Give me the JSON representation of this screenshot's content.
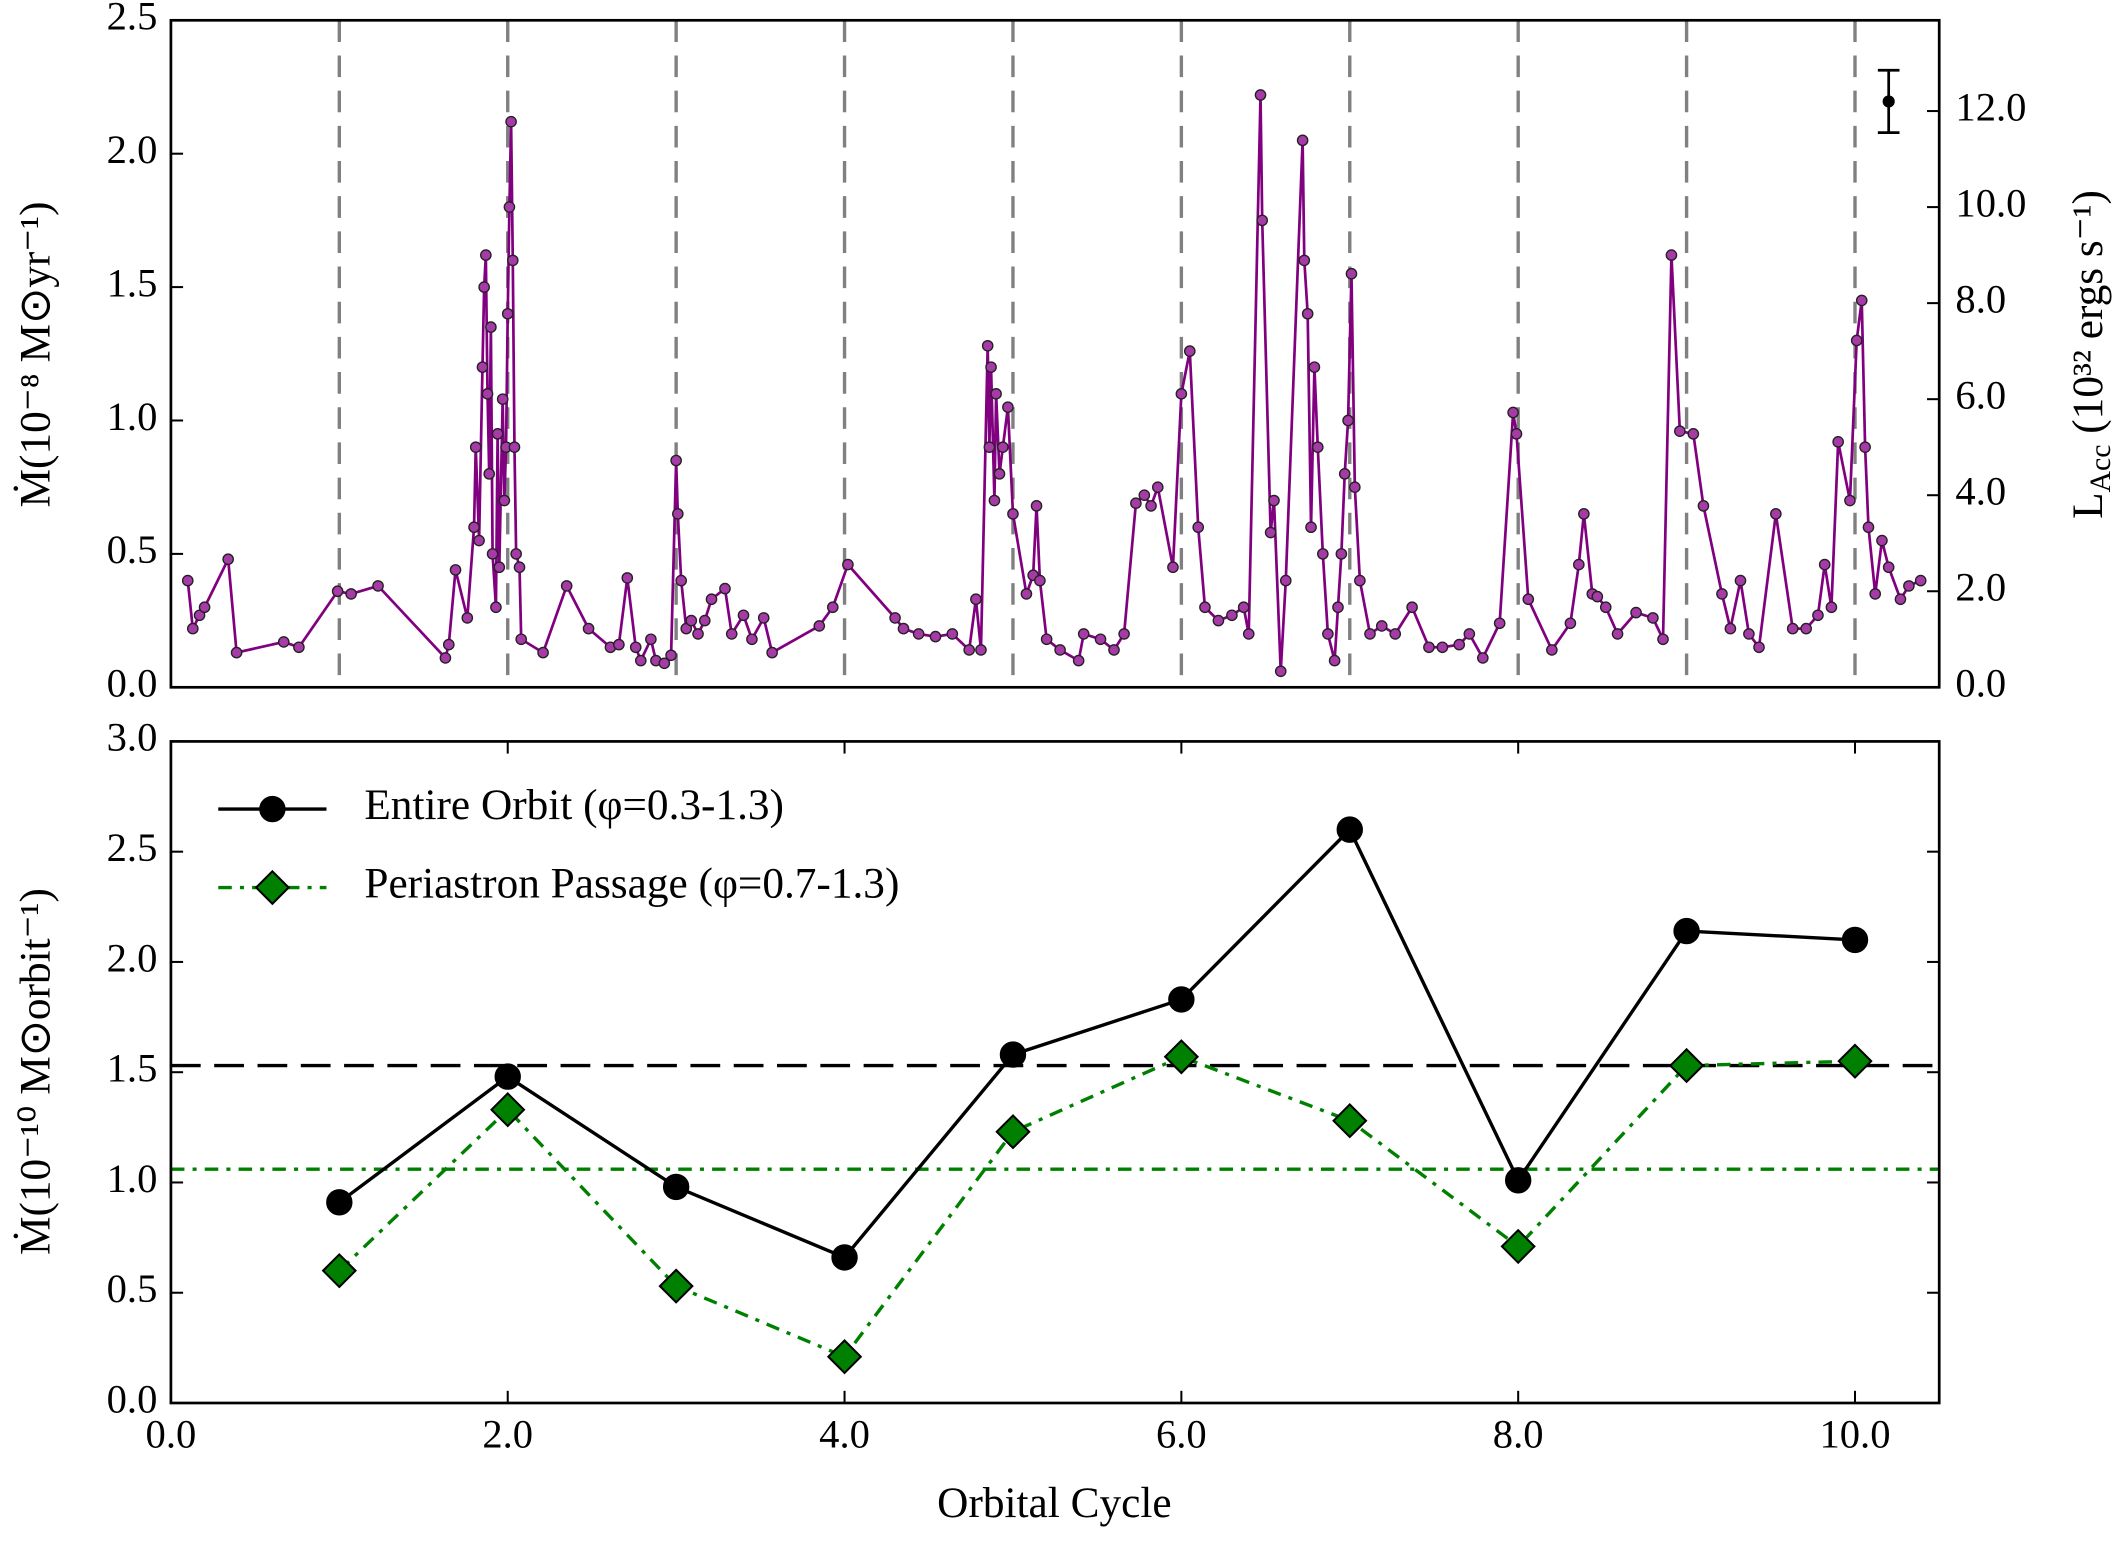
{
  "chart_data": [
    {
      "type": "line",
      "ylabel": "Ṁ(10⁻⁸ M⊙yr⁻¹)",
      "y2label": {
        "main": "L",
        "sub": "Acc",
        "rest": " (10³² ergs s⁻¹)"
      },
      "x": [
        0.1,
        0.13,
        0.17,
        0.2,
        0.34,
        0.39,
        0.67,
        0.76,
        0.99,
        1.07,
        1.23,
        1.63,
        1.65,
        1.69,
        1.76,
        1.8,
        1.81,
        1.83,
        1.85,
        1.86,
        1.87,
        1.88,
        1.89,
        1.9,
        1.91,
        1.93,
        1.94,
        1.95,
        1.97,
        1.98,
        1.99,
        2.0,
        2.01,
        2.02,
        2.03,
        2.04,
        2.05,
        2.07,
        2.08,
        2.21,
        2.35,
        2.48,
        2.61,
        2.66,
        2.71,
        2.76,
        2.79,
        2.85,
        2.88,
        2.93,
        2.97,
        3.0,
        3.01,
        3.03,
        3.06,
        3.09,
        3.13,
        3.17,
        3.21,
        3.29,
        3.33,
        3.4,
        3.45,
        3.52,
        3.57,
        3.85,
        3.93,
        4.02,
        4.3,
        4.35,
        4.44,
        4.54,
        4.64,
        4.74,
        4.78,
        4.81,
        4.85,
        4.86,
        4.87,
        4.89,
        4.9,
        4.92,
        4.94,
        4.97,
        5.0,
        5.08,
        5.12,
        5.14,
        5.16,
        5.2,
        5.28,
        5.39,
        5.42,
        5.52,
        5.6,
        5.66,
        5.73,
        5.78,
        5.82,
        5.86,
        5.95,
        6.0,
        6.05,
        6.1,
        6.14,
        6.22,
        6.3,
        6.37,
        6.4,
        6.47,
        6.48,
        6.53,
        6.55,
        6.59,
        6.62,
        6.72,
        6.73,
        6.75,
        6.77,
        6.79,
        6.81,
        6.84,
        6.87,
        6.91,
        6.93,
        6.95,
        6.97,
        6.99,
        7.01,
        7.03,
        7.06,
        7.12,
        7.19,
        7.27,
        7.37,
        7.47,
        7.55,
        7.65,
        7.71,
        7.79,
        7.89,
        7.97,
        7.99,
        8.06,
        8.2,
        8.31,
        8.36,
        8.39,
        8.44,
        8.47,
        8.52,
        8.59,
        8.7,
        8.8,
        8.86,
        8.91,
        8.96,
        9.04,
        9.1,
        9.21,
        9.26,
        9.32,
        9.37,
        9.43,
        9.53,
        9.63,
        9.71,
        9.78,
        9.82,
        9.86,
        9.9,
        9.97,
        10.01,
        10.04,
        10.06,
        10.08,
        10.12,
        10.16,
        10.2,
        10.27,
        10.32,
        10.39
      ],
      "series": [
        {
          "color": "#800080",
          "marker_color": "#a63aa6",
          "values": [
            0.4,
            0.22,
            0.27,
            0.3,
            0.48,
            0.13,
            0.17,
            0.15,
            0.36,
            0.35,
            0.38,
            0.11,
            0.16,
            0.44,
            0.26,
            0.6,
            0.9,
            0.55,
            1.2,
            1.5,
            1.62,
            1.1,
            0.8,
            1.35,
            0.5,
            0.3,
            0.95,
            0.45,
            1.08,
            0.7,
            0.9,
            1.4,
            1.8,
            2.12,
            1.6,
            0.9,
            0.5,
            0.45,
            0.18,
            0.13,
            0.38,
            0.22,
            0.15,
            0.16,
            0.41,
            0.15,
            0.1,
            0.18,
            0.1,
            0.09,
            0.12,
            0.85,
            0.65,
            0.4,
            0.22,
            0.25,
            0.2,
            0.25,
            0.33,
            0.37,
            0.2,
            0.27,
            0.18,
            0.26,
            0.13,
            0.23,
            0.3,
            0.46,
            0.26,
            0.22,
            0.2,
            0.19,
            0.2,
            0.14,
            0.33,
            0.14,
            1.28,
            0.9,
            1.2,
            0.7,
            1.1,
            0.8,
            0.9,
            1.05,
            0.65,
            0.35,
            0.42,
            0.68,
            0.4,
            0.18,
            0.14,
            0.1,
            0.2,
            0.18,
            0.14,
            0.2,
            0.69,
            0.72,
            0.68,
            0.75,
            0.45,
            1.1,
            1.26,
            0.6,
            0.3,
            0.25,
            0.27,
            0.3,
            0.2,
            2.22,
            1.75,
            0.58,
            0.7,
            0.06,
            0.4,
            2.05,
            1.6,
            1.4,
            0.6,
            1.2,
            0.9,
            0.5,
            0.2,
            0.1,
            0.3,
            0.5,
            0.8,
            1.0,
            1.55,
            0.75,
            0.4,
            0.2,
            0.23,
            0.2,
            0.3,
            0.15,
            0.15,
            0.16,
            0.2,
            0.11,
            0.24,
            1.03,
            0.95,
            0.33,
            0.14,
            0.24,
            0.46,
            0.65,
            0.35,
            0.34,
            0.3,
            0.2,
            0.28,
            0.26,
            0.18,
            1.62,
            0.96,
            0.95,
            0.68,
            0.35,
            0.22,
            0.4,
            0.2,
            0.15,
            0.65,
            0.22,
            0.22,
            0.27,
            0.46,
            0.3,
            0.92,
            0.7,
            1.3,
            1.45,
            0.9,
            0.6,
            0.35,
            0.55,
            0.45,
            0.33,
            0.38,
            0.4
          ]
        }
      ],
      "xlim": [
        0,
        10.5
      ],
      "ylim": [
        0,
        2.5
      ],
      "yticks": [
        {
          "value": 0,
          "label": "0.0"
        },
        0.5,
        {
          "value": 1,
          "label": "1.0"
        },
        1.5,
        {
          "value": 2,
          "label": "2.0"
        },
        2.5
      ],
      "y2lim": [
        0,
        13.89
      ],
      "y2ticks": [
        {
          "value": 0,
          "label": "0.0"
        },
        {
          "value": 2,
          "label": "2.0"
        },
        {
          "value": 4,
          "label": "4.0"
        },
        {
          "value": 6,
          "label": "6.0"
        },
        {
          "value": 8,
          "label": "8.0"
        },
        {
          "value": 10,
          "label": "10.0"
        },
        {
          "value": 12,
          "label": "12.0"
        }
      ],
      "vlines": [
        1,
        2,
        3,
        4,
        5,
        6,
        7,
        8,
        9,
        10
      ],
      "vline_color": "#808080",
      "reference_error": {
        "x": 10.2,
        "y": 12.2,
        "yerr": 0.65,
        "axis": "y2"
      }
    },
    {
      "type": "line",
      "xlabel": "Orbital Cycle",
      "ylabel": "Ṁ(10⁻¹⁰ M⊙orbit⁻¹)",
      "x": [
        1,
        2,
        3,
        4,
        5,
        6,
        7,
        8,
        9,
        10
      ],
      "series": [
        {
          "name": "Entire Orbit (φ=0.3-1.3)",
          "color": "#000000",
          "marker": "circle",
          "linestyle": "solid",
          "values": [
            0.91,
            1.48,
            0.98,
            0.66,
            1.58,
            1.83,
            2.6,
            1.01,
            2.14,
            2.1
          ]
        },
        {
          "name": "Periastron Passage (φ=0.7-1.3)",
          "color": "#008000",
          "marker": "diamond",
          "linestyle": "dashdot",
          "values": [
            0.6,
            1.33,
            0.53,
            0.21,
            1.23,
            1.57,
            1.28,
            0.71,
            1.53,
            1.55
          ]
        }
      ],
      "hlines": [
        {
          "value": 1.53,
          "color": "#000000",
          "linestyle": "dashed"
        },
        {
          "value": 1.06,
          "color": "#008000",
          "linestyle": "dashdot"
        }
      ],
      "legend": "upper left",
      "xlim": [
        0,
        10.5
      ],
      "xticks": [
        {
          "value": 0,
          "label": "0.0"
        },
        {
          "value": 2,
          "label": "2.0"
        },
        {
          "value": 4,
          "label": "4.0"
        },
        {
          "value": 6,
          "label": "6.0"
        },
        {
          "value": 8,
          "label": "8.0"
        },
        {
          "value": 10,
          "label": "10.0"
        }
      ],
      "ylim": [
        0,
        3
      ],
      "yticks": [
        {
          "value": 0,
          "label": "0.0"
        },
        0.5,
        {
          "value": 1,
          "label": "1.0"
        },
        1.5,
        {
          "value": 2,
          "label": "2.0"
        },
        2.5,
        {
          "value": 3,
          "label": "3.0"
        }
      ]
    }
  ]
}
